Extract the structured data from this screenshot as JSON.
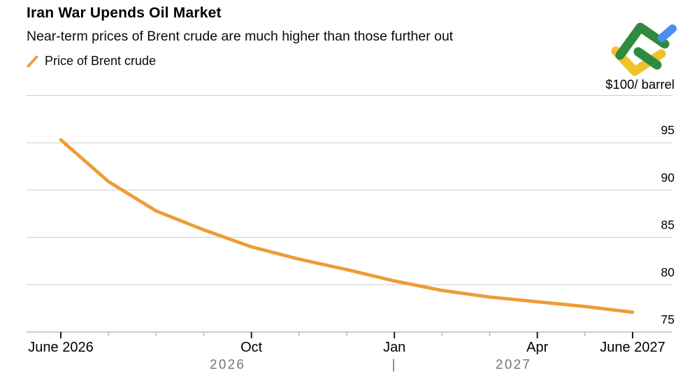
{
  "header": {
    "title": "Iran War Upends Oil Market",
    "subtitle": "Near-term prices of Brent crude are much higher than those further out"
  },
  "legend": {
    "label": "Price of Brent crude"
  },
  "logo": {
    "name": "LiteFinance",
    "colors": {
      "green": "#2f8a3d",
      "blue": "#4b8df0",
      "yellow": "#efc12c"
    }
  },
  "chart_data": {
    "type": "line",
    "title": "Iran War Upends Oil Market",
    "subtitle": "Near-term prices of Brent crude are much higher than those further out",
    "ylabel": "$100/ barrel",
    "ylim": [
      75,
      100
    ],
    "y_ticks": [
      95,
      90,
      85,
      80,
      75
    ],
    "grid_values": [
      100,
      95,
      90,
      85,
      80
    ],
    "grid": "horizontal-only",
    "grid_color": "#cdcdcd",
    "axis_color": "#adadad",
    "major_tick_color": "#1a1a1a",
    "minor_tick_color": "#b5b5b5",
    "year_label_color": "#757575",
    "legend_position": "top-left",
    "categories": [
      "June 2026",
      "Jul 2026",
      "Aug 2026",
      "Sep 2026",
      "Oct 2026",
      "Nov 2026",
      "Dec 2026",
      "Jan 2027",
      "Feb 2027",
      "Mar 2027",
      "Apr 2027",
      "May 2027",
      "June 2027"
    ],
    "series": [
      {
        "name": "Price of Brent crude",
        "color": "#EE9C34",
        "values": [
          95.3,
          90.9,
          87.8,
          85.8,
          84.0,
          82.7,
          81.6,
          80.4,
          79.4,
          78.7,
          78.2,
          77.7,
          77.1
        ]
      }
    ],
    "x_ticks": [
      {
        "index": 0,
        "label": "June 2026"
      },
      {
        "index": 4,
        "label": "Oct"
      },
      {
        "index": 7,
        "label": "Jan"
      },
      {
        "index": 10,
        "label": "Apr"
      },
      {
        "index": 12,
        "label": "June 2027"
      }
    ],
    "x_year_labels": [
      {
        "between": [
          0,
          7
        ],
        "label": "2026"
      },
      {
        "between": [
          7,
          7
        ],
        "label": "|"
      },
      {
        "between": [
          7,
          12
        ],
        "label": "2027"
      }
    ]
  }
}
